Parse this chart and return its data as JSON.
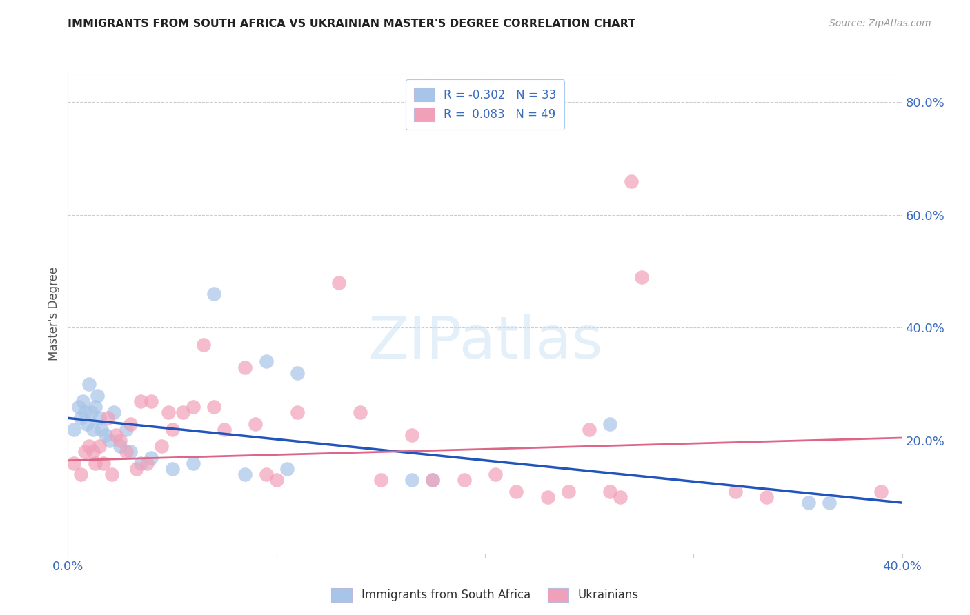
{
  "title": "IMMIGRANTS FROM SOUTH AFRICA VS UKRAINIAN MASTER'S DEGREE CORRELATION CHART",
  "source": "Source: ZipAtlas.com",
  "ylabel": "Master's Degree",
  "watermark": "ZIPatlas",
  "legend_blue_label": "Immigrants from South Africa",
  "legend_pink_label": "Ukrainians",
  "blue_R": -0.302,
  "blue_N": 33,
  "pink_R": 0.083,
  "pink_N": 49,
  "xmin": 0.0,
  "xmax": 0.4,
  "ymin": 0.0,
  "ymax": 0.85,
  "x_ticks": [
    0.0,
    0.1,
    0.2,
    0.3,
    0.4
  ],
  "x_tick_labels": [
    "0.0%",
    "",
    "",
    "",
    "40.0%"
  ],
  "y_ticks_right": [
    0.2,
    0.4,
    0.6,
    0.8
  ],
  "y_tick_labels_right": [
    "20.0%",
    "40.0%",
    "60.0%",
    "80.0%"
  ],
  "blue_color": "#a8c4e8",
  "blue_line_color": "#2255bb",
  "pink_color": "#f0a0b8",
  "pink_line_color": "#dd6688",
  "background_color": "#ffffff",
  "grid_color": "#cccccc",
  "blue_scatter_x": [
    0.003,
    0.005,
    0.006,
    0.007,
    0.008,
    0.009,
    0.01,
    0.011,
    0.012,
    0.013,
    0.014,
    0.015,
    0.016,
    0.018,
    0.02,
    0.022,
    0.025,
    0.028,
    0.03,
    0.035,
    0.04,
    0.05,
    0.06,
    0.07,
    0.085,
    0.095,
    0.105,
    0.11,
    0.165,
    0.175,
    0.26,
    0.355,
    0.365
  ],
  "blue_scatter_y": [
    0.22,
    0.26,
    0.24,
    0.27,
    0.25,
    0.23,
    0.3,
    0.25,
    0.22,
    0.26,
    0.28,
    0.24,
    0.22,
    0.21,
    0.2,
    0.25,
    0.19,
    0.22,
    0.18,
    0.16,
    0.17,
    0.15,
    0.16,
    0.46,
    0.14,
    0.34,
    0.15,
    0.32,
    0.13,
    0.13,
    0.23,
    0.09,
    0.09
  ],
  "pink_scatter_x": [
    0.003,
    0.006,
    0.008,
    0.01,
    0.012,
    0.013,
    0.015,
    0.017,
    0.019,
    0.021,
    0.023,
    0.025,
    0.028,
    0.03,
    0.033,
    0.035,
    0.038,
    0.04,
    0.045,
    0.048,
    0.05,
    0.055,
    0.06,
    0.065,
    0.07,
    0.075,
    0.085,
    0.09,
    0.095,
    0.1,
    0.11,
    0.13,
    0.14,
    0.15,
    0.165,
    0.175,
    0.19,
    0.205,
    0.215,
    0.23,
    0.24,
    0.25,
    0.26,
    0.265,
    0.27,
    0.275,
    0.32,
    0.335,
    0.39
  ],
  "pink_scatter_y": [
    0.16,
    0.14,
    0.18,
    0.19,
    0.18,
    0.16,
    0.19,
    0.16,
    0.24,
    0.14,
    0.21,
    0.2,
    0.18,
    0.23,
    0.15,
    0.27,
    0.16,
    0.27,
    0.19,
    0.25,
    0.22,
    0.25,
    0.26,
    0.37,
    0.26,
    0.22,
    0.33,
    0.23,
    0.14,
    0.13,
    0.25,
    0.48,
    0.25,
    0.13,
    0.21,
    0.13,
    0.13,
    0.14,
    0.11,
    0.1,
    0.11,
    0.22,
    0.11,
    0.1,
    0.66,
    0.49,
    0.11,
    0.1,
    0.11
  ]
}
